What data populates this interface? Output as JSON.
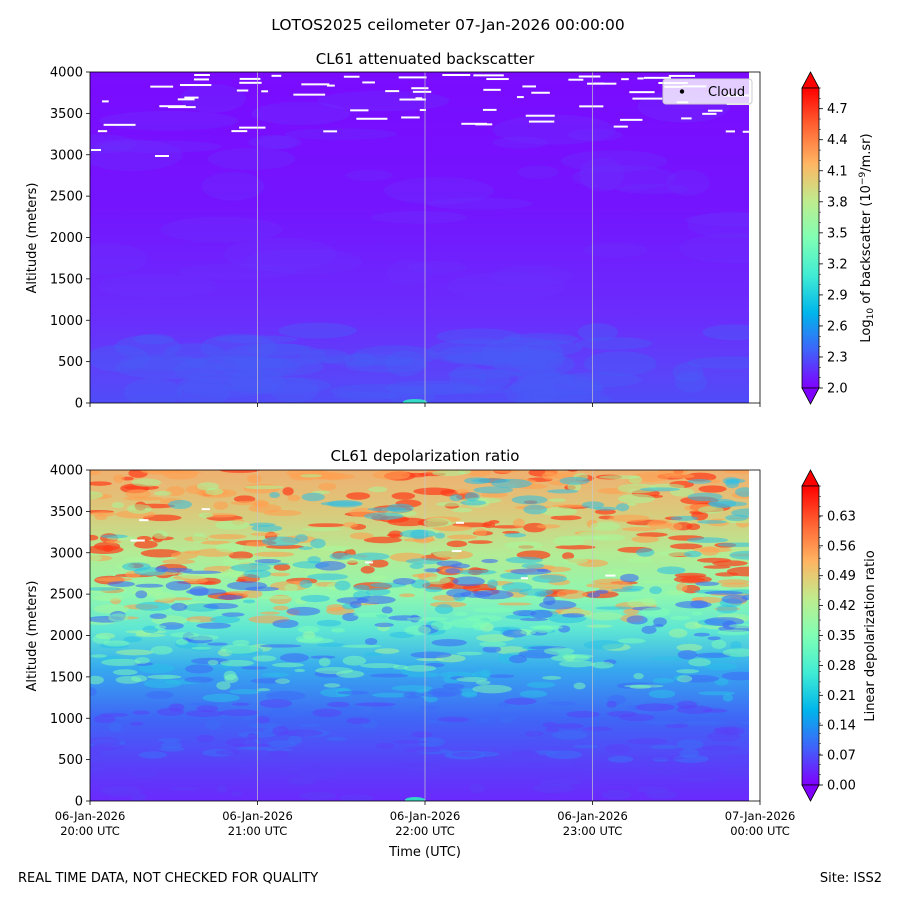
{
  "figure": {
    "suptitle": "LOTOS2025 ceilometer 07-Jan-2026 00:00:00",
    "footer_left": "REAL TIME DATA, NOT CHECKED FOR QUALITY",
    "footer_right": "Site: ISS2"
  },
  "chart_data": [
    {
      "type": "heatmap",
      "title": "CL61 attenuated backscatter",
      "ylabel": "Altitude (meters)",
      "xlabel": "",
      "x_range": [
        "06-Jan-2026 20:00 UTC",
        "07-Jan-2026 00:00 UTC"
      ],
      "x_ticks": [
        {
          "date": "06-Jan-2026",
          "time": "20:00 UTC"
        },
        {
          "date": "06-Jan-2026",
          "time": "21:00 UTC"
        },
        {
          "date": "06-Jan-2026",
          "time": "22:00 UTC"
        },
        {
          "date": "06-Jan-2026",
          "time": "23:00 UTC"
        },
        {
          "date": "07-Jan-2026",
          "time": "00:00 UTC"
        }
      ],
      "ylim": [
        0,
        4000
      ],
      "y_ticks": [
        "0",
        "500",
        "1000",
        "1500",
        "2000",
        "2500",
        "3000",
        "3500",
        "4000"
      ],
      "colorbar": {
        "label": "Log10 of backscatter (10^-9/m.sr)",
        "label_parts": {
          "pre": "Log",
          "sub": "10",
          "mid": " of backscatter (10",
          "sup": "−9",
          "post": "/m.sr)"
        },
        "range": [
          2.0,
          4.9
        ],
        "ticks": [
          "2.0",
          "2.3",
          "2.6",
          "2.9",
          "3.2",
          "3.5",
          "3.8",
          "4.1",
          "4.4",
          "4.7"
        ],
        "colormap": "rainbow",
        "extend": "both"
      },
      "legend": {
        "placement": "top-right",
        "entries": [
          "Cloud"
        ]
      },
      "description_values": {
        "background_level": 2.05,
        "near_surface_level": 2.25,
        "max_level": 3.5
      }
    },
    {
      "type": "heatmap",
      "title": "CL61 depolarization ratio",
      "ylabel": "Altitude (meters)",
      "xlabel": "Time (UTC)",
      "x_range": [
        "06-Jan-2026 20:00 UTC",
        "07-Jan-2026 00:00 UTC"
      ],
      "x_ticks": [
        {
          "date": "06-Jan-2026",
          "time": "20:00 UTC"
        },
        {
          "date": "06-Jan-2026",
          "time": "21:00 UTC"
        },
        {
          "date": "06-Jan-2026",
          "time": "22:00 UTC"
        },
        {
          "date": "06-Jan-2026",
          "time": "23:00 UTC"
        },
        {
          "date": "07-Jan-2026",
          "time": "00:00 UTC"
        }
      ],
      "ylim": [
        0,
        4000
      ],
      "y_ticks": [
        "0",
        "500",
        "1000",
        "1500",
        "2000",
        "2500",
        "3000",
        "3500",
        "4000"
      ],
      "colorbar": {
        "label": "Linear depolarization ratio",
        "range": [
          0.0,
          0.7
        ],
        "ticks": [
          "0.00",
          "0.07",
          "0.14",
          "0.21",
          "0.28",
          "0.35",
          "0.42",
          "0.49",
          "0.56",
          "0.63"
        ],
        "colormap": "rainbow",
        "extend": "both"
      },
      "description_values": {
        "low_altitude_level": 0.06,
        "mid_altitude_level": 0.3,
        "upper_altitude_level": 0.5
      }
    }
  ]
}
